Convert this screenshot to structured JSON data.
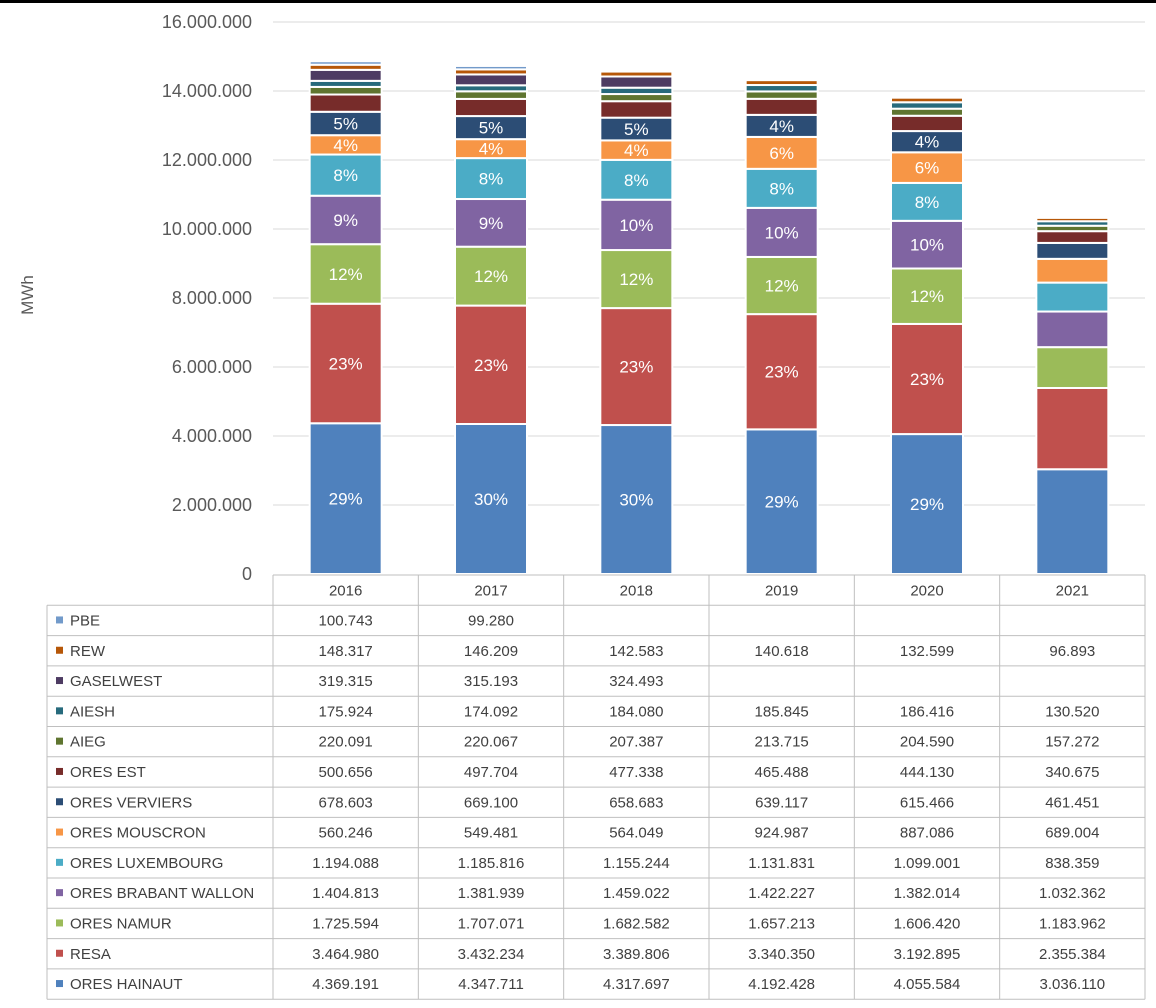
{
  "chart_data": {
    "type": "bar",
    "stacked": true,
    "title": "",
    "xlabel": "",
    "ylabel": "MWh",
    "ylim": [
      0,
      16000000
    ],
    "yticks": [
      0,
      2000000,
      4000000,
      6000000,
      8000000,
      10000000,
      12000000,
      14000000,
      16000000
    ],
    "ytick_labels": [
      "0",
      "2.000.000",
      "4.000.000",
      "6.000.000",
      "8.000.000",
      "10.000.000",
      "12.000.000",
      "14.000.000",
      "16.000.000"
    ],
    "grid": true,
    "legend": "data-table-below",
    "categories": [
      "2016",
      "2017",
      "2018",
      "2019",
      "2020",
      "2021"
    ],
    "series": [
      {
        "name": "ORES HAINAUT",
        "color": "#4f81bd",
        "values": [
          4369191,
          4347711,
          4317697,
          4192428,
          4055584,
          3036110
        ],
        "display": [
          "4.369.191",
          "4.347.711",
          "4.317.697",
          "4.192.428",
          "4.055.584",
          "3.036.110"
        ],
        "pct_labels": [
          "29%",
          "30%",
          "30%",
          "29%",
          "29%",
          ""
        ]
      },
      {
        "name": "RESA",
        "color": "#c0504d",
        "values": [
          3464980,
          3432234,
          3389806,
          3340350,
          3192895,
          2355384
        ],
        "display": [
          "3.464.980",
          "3.432.234",
          "3.389.806",
          "3.340.350",
          "3.192.895",
          "2.355.384"
        ],
        "pct_labels": [
          "23%",
          "23%",
          "23%",
          "23%",
          "23%",
          ""
        ]
      },
      {
        "name": "ORES NAMUR",
        "color": "#9bbb59",
        "values": [
          1725594,
          1707071,
          1682582,
          1657213,
          1606420,
          1183962
        ],
        "display": [
          "1.725.594",
          "1.707.071",
          "1.682.582",
          "1.657.213",
          "1.606.420",
          "1.183.962"
        ],
        "pct_labels": [
          "12%",
          "12%",
          "12%",
          "12%",
          "12%",
          ""
        ]
      },
      {
        "name": "ORES BRABANT WALLON",
        "color": "#8064a2",
        "values": [
          1404813,
          1381939,
          1459022,
          1422227,
          1382014,
          1032362
        ],
        "display": [
          "1.404.813",
          "1.381.939",
          "1.459.022",
          "1.422.227",
          "1.382.014",
          "1.032.362"
        ],
        "pct_labels": [
          "9%",
          "9%",
          "10%",
          "10%",
          "10%",
          ""
        ]
      },
      {
        "name": "ORES LUXEMBOURG",
        "color": "#4bacc6",
        "values": [
          1194088,
          1185816,
          1155244,
          1131831,
          1099001,
          838359
        ],
        "display": [
          "1.194.088",
          "1.185.816",
          "1.155.244",
          "1.131.831",
          "1.099.001",
          "838.359"
        ],
        "pct_labels": [
          "8%",
          "8%",
          "8%",
          "8%",
          "8%",
          ""
        ]
      },
      {
        "name": "ORES MOUSCRON",
        "color": "#f79646",
        "values": [
          560246,
          549481,
          564049,
          924987,
          887086,
          689004
        ],
        "display": [
          "560.246",
          "549.481",
          "564.049",
          "924.987",
          "887.086",
          "689.004"
        ],
        "pct_labels": [
          "4%",
          "4%",
          "4%",
          "6%",
          "6%",
          ""
        ]
      },
      {
        "name": "ORES VERVIERS",
        "color": "#2c4d75",
        "values": [
          678603,
          669100,
          658683,
          639117,
          615466,
          461451
        ],
        "display": [
          "678.603",
          "669.100",
          "658.683",
          "639.117",
          "615.466",
          "461.451"
        ],
        "pct_labels": [
          "5%",
          "5%",
          "5%",
          "4%",
          "4%",
          ""
        ]
      },
      {
        "name": "ORES EST",
        "color": "#772c2a",
        "values": [
          500656,
          497704,
          477338,
          465488,
          444130,
          340675
        ],
        "display": [
          "500.656",
          "497.704",
          "477.338",
          "465.488",
          "444.130",
          "340.675"
        ],
        "pct_labels": [
          "",
          "",
          "",
          "",
          "",
          ""
        ]
      },
      {
        "name": "AIEG",
        "color": "#5f7530",
        "values": [
          220091,
          220067,
          207387,
          213715,
          204590,
          157272
        ],
        "display": [
          "220.091",
          "220.067",
          "207.387",
          "213.715",
          "204.590",
          "157.272"
        ],
        "pct_labels": [
          "",
          "",
          "",
          "",
          "",
          ""
        ]
      },
      {
        "name": "AIESH",
        "color": "#276a7c",
        "values": [
          175924,
          174092,
          184080,
          185845,
          186416,
          130520
        ],
        "display": [
          "175.924",
          "174.092",
          "184.080",
          "185.845",
          "186.416",
          "130.520"
        ],
        "pct_labels": [
          "",
          "",
          "",
          "",
          "",
          ""
        ]
      },
      {
        "name": "GASELWEST",
        "color": "#4d3b62",
        "values": [
          319315,
          315193,
          324493,
          null,
          null,
          null
        ],
        "display": [
          "319.315",
          "315.193",
          "324.493",
          "",
          "",
          ""
        ],
        "pct_labels": [
          "",
          "",
          "",
          "",
          "",
          ""
        ]
      },
      {
        "name": "REW",
        "color": "#b65708",
        "values": [
          148317,
          146209,
          142583,
          140618,
          132599,
          96893
        ],
        "display": [
          "148.317",
          "146.209",
          "142.583",
          "140.618",
          "132.599",
          "96.893"
        ],
        "pct_labels": [
          "",
          "",
          "",
          "",
          "",
          ""
        ]
      },
      {
        "name": "PBE",
        "color": "#729aca",
        "values": [
          100743,
          99280,
          null,
          null,
          null,
          null
        ],
        "display": [
          "100.743",
          "99.280",
          "",
          "",
          "",
          ""
        ],
        "pct_labels": [
          "",
          "",
          "",
          "",
          "",
          ""
        ]
      }
    ]
  }
}
